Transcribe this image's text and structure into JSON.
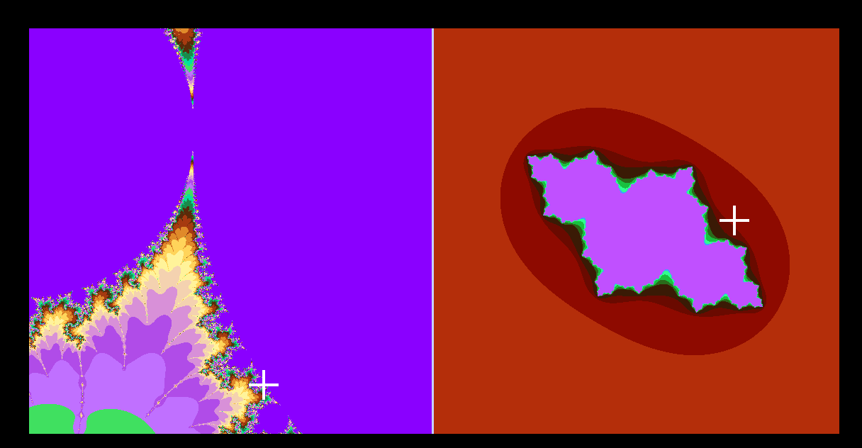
{
  "app": {
    "background_color": "#000000"
  },
  "mandelbrot_view": {
    "description_icon": "mandelbrot-fractal",
    "palette": [
      "#8a00ff",
      "#b04ce8",
      "#d890d8",
      "#f4d2b0",
      "#fff39a",
      "#ffd45a",
      "#e08a2a",
      "#a63a10",
      "#5a2a0a",
      "#1a8a4a",
      "#00e0a0",
      "#40e060",
      "#c070ff"
    ],
    "cursor_icon": "crosshair-icon"
  },
  "julia_view": {
    "description_icon": "julia-fractal",
    "palette": [
      "#b42e0a",
      "#8e0a00",
      "#6a0a00",
      "#3a1a05",
      "#2a6a1a",
      "#18c040",
      "#30ff90",
      "#40a0ff",
      "#c050ff",
      "#ffd060"
    ],
    "cursor_icon": "crosshair-icon"
  }
}
